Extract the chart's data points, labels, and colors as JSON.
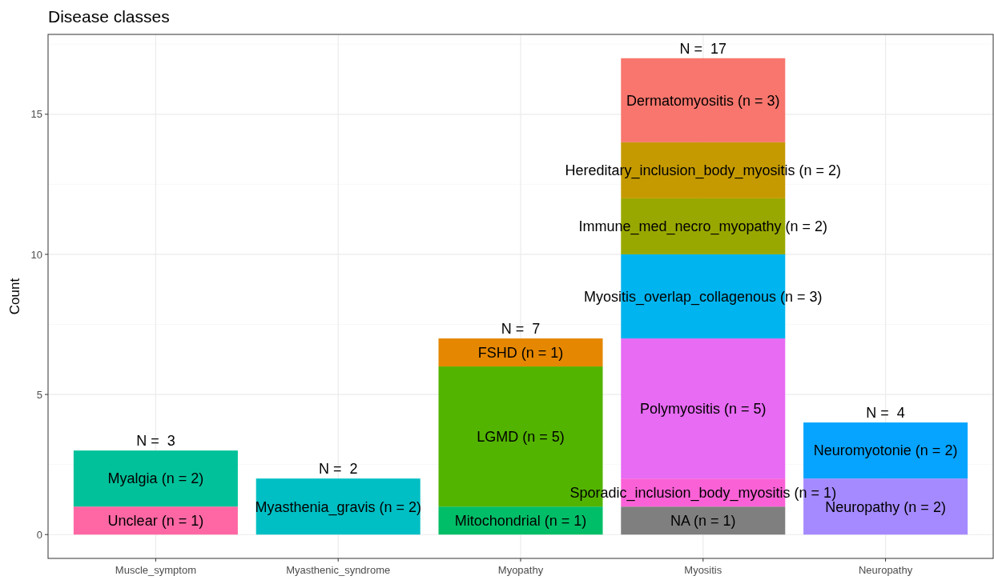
{
  "chart_data": {
    "type": "bar",
    "title": "Disease classes",
    "ylabel": "Count",
    "stacked": true,
    "categories": [
      "Muscle_symptom",
      "Myasthenic_syndrome",
      "Myopathy",
      "Myositis",
      "Neuropathy"
    ],
    "series": [
      {
        "color": "#ff67a4",
        "values": [
          1,
          null,
          null,
          null,
          null
        ],
        "value_labels": [
          "Unclear (n = 1)",
          null,
          null,
          null,
          null
        ]
      },
      {
        "color": "#00c19a",
        "values": [
          2,
          null,
          null,
          null,
          null
        ],
        "value_labels": [
          "Myalgia (n = 2)",
          null,
          null,
          null,
          null
        ]
      },
      {
        "color": "#00bfc4",
        "values": [
          null,
          2,
          null,
          null,
          null
        ],
        "value_labels": [
          null,
          "Myasthenia_gravis (n = 2)",
          null,
          null,
          null
        ]
      },
      {
        "color": "#00be67",
        "values": [
          null,
          null,
          1,
          null,
          null
        ],
        "value_labels": [
          null,
          null,
          "Mitochondrial (n = 1)",
          null,
          null
        ]
      },
      {
        "color": "#53b400",
        "values": [
          null,
          null,
          5,
          null,
          null
        ],
        "value_labels": [
          null,
          null,
          "LGMD (n = 5)",
          null,
          null
        ]
      },
      {
        "color": "#e58700",
        "values": [
          null,
          null,
          1,
          null,
          null
        ],
        "value_labels": [
          null,
          null,
          "FSHD (n = 1)",
          null,
          null
        ]
      },
      {
        "color": "#7f7f7f",
        "values": [
          null,
          null,
          null,
          1,
          null
        ],
        "value_labels": [
          null,
          null,
          null,
          "NA (n = 1)",
          null
        ]
      },
      {
        "color": "#fb61d7",
        "values": [
          null,
          null,
          null,
          1,
          null
        ],
        "value_labels": [
          null,
          null,
          null,
          "Sporadic_inclusion_body_myositis (n = 1)",
          null
        ]
      },
      {
        "color": "#e76bf3",
        "values": [
          null,
          null,
          null,
          5,
          null
        ],
        "value_labels": [
          null,
          null,
          null,
          "Polymyositis (n = 5)",
          null
        ]
      },
      {
        "color": "#00b4ef",
        "values": [
          null,
          null,
          null,
          3,
          null
        ],
        "value_labels": [
          null,
          null,
          null,
          "Myositis_overlap_collagenous (n = 3)",
          null
        ]
      },
      {
        "color": "#99a800",
        "values": [
          null,
          null,
          null,
          2,
          null
        ],
        "value_labels": [
          null,
          null,
          null,
          "Immune_med_necro_myopathy (n = 2)",
          null
        ]
      },
      {
        "color": "#c49a00",
        "values": [
          null,
          null,
          null,
          2,
          null
        ],
        "value_labels": [
          null,
          null,
          null,
          "Hereditary_inclusion_body_myositis (n = 2)",
          null
        ]
      },
      {
        "color": "#f8766d",
        "values": [
          null,
          null,
          null,
          3,
          null
        ],
        "value_labels": [
          null,
          null,
          null,
          "Dermatomyositis (n = 3)",
          null
        ]
      },
      {
        "color": "#a58aff",
        "values": [
          null,
          null,
          null,
          null,
          2
        ],
        "value_labels": [
          null,
          null,
          null,
          null,
          "Neuropathy (n = 2)"
        ]
      },
      {
        "color": "#06a4ff",
        "values": [
          null,
          null,
          null,
          null,
          2
        ],
        "value_labels": [
          null,
          null,
          null,
          null,
          "Neuromyotonie (n = 2)"
        ]
      }
    ],
    "totals": [
      "N =  3",
      "N =  2",
      "N =  7",
      "N =  17",
      "N =  4"
    ],
    "ylim": [
      -0.85,
      17.85
    ],
    "yticks": [
      0,
      5,
      10,
      15
    ],
    "grid": true
  }
}
